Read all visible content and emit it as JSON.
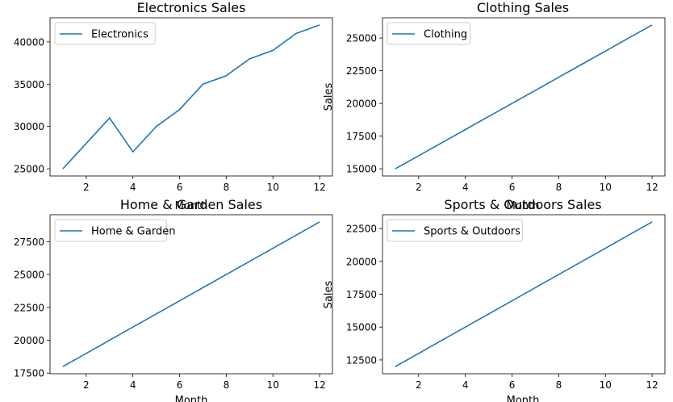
{
  "chart_data": [
    {
      "type": "line",
      "title": "Electronics Sales",
      "xlabel": "Month",
      "ylabel": "",
      "x": [
        1,
        2,
        3,
        4,
        5,
        6,
        7,
        8,
        9,
        10,
        11,
        12
      ],
      "series": [
        {
          "name": "Electronics",
          "values": [
            25000,
            28000,
            31000,
            27000,
            30000,
            32000,
            35000,
            36000,
            38000,
            39000,
            41000,
            42000
          ],
          "color": "#1f77b4"
        }
      ],
      "xticks": [
        2,
        4,
        6,
        8,
        10,
        12
      ],
      "yticks": [
        25000,
        30000,
        35000,
        40000
      ],
      "xlim": [
        0.45,
        12.55
      ],
      "ylim": [
        24150,
        42850
      ],
      "legend": "upper-left",
      "grid": false
    },
    {
      "type": "line",
      "title": "Clothing Sales",
      "xlabel": "Month",
      "ylabel": "Sales",
      "x": [
        1,
        2,
        3,
        4,
        5,
        6,
        7,
        8,
        9,
        10,
        11,
        12
      ],
      "series": [
        {
          "name": "Clothing",
          "values": [
            15000,
            16000,
            17000,
            18000,
            19000,
            20000,
            21000,
            22000,
            23000,
            24000,
            25000,
            26000
          ],
          "color": "#1f77b4"
        }
      ],
      "xticks": [
        2,
        4,
        6,
        8,
        10,
        12
      ],
      "yticks": [
        15000,
        17500,
        20000,
        22500,
        25000
      ],
      "xlim": [
        0.45,
        12.55
      ],
      "ylim": [
        14450,
        26550
      ],
      "legend": "upper-left",
      "grid": false
    },
    {
      "type": "line",
      "title": "Home & Garden Sales",
      "xlabel": "Month",
      "ylabel": "",
      "x": [
        1,
        2,
        3,
        4,
        5,
        6,
        7,
        8,
        9,
        10,
        11,
        12
      ],
      "series": [
        {
          "name": "Home & Garden",
          "values": [
            18000,
            19000,
            20000,
            21000,
            22000,
            23000,
            24000,
            25000,
            26000,
            27000,
            28000,
            29000
          ],
          "color": "#1f77b4"
        }
      ],
      "xticks": [
        2,
        4,
        6,
        8,
        10,
        12
      ],
      "yticks": [
        17500,
        20000,
        22500,
        25000,
        27500
      ],
      "xlim": [
        0.45,
        12.55
      ],
      "ylim": [
        17450,
        29550
      ],
      "legend": "upper-left",
      "grid": false
    },
    {
      "type": "line",
      "title": "Sports & Outdoors Sales",
      "xlabel": "Month",
      "ylabel": "Sales",
      "x": [
        1,
        2,
        3,
        4,
        5,
        6,
        7,
        8,
        9,
        10,
        11,
        12
      ],
      "series": [
        {
          "name": "Sports & Outdoors",
          "values": [
            12000,
            13000,
            14000,
            15000,
            16000,
            17000,
            18000,
            19000,
            20000,
            21000,
            22000,
            23000
          ],
          "color": "#1f77b4"
        }
      ],
      "xticks": [
        2,
        4,
        6,
        8,
        10,
        12
      ],
      "yticks": [
        12500,
        15000,
        17500,
        20000,
        22500
      ],
      "xlim": [
        0.45,
        12.55
      ],
      "ylim": [
        11450,
        23550
      ],
      "legend": "upper-left",
      "grid": false
    }
  ]
}
